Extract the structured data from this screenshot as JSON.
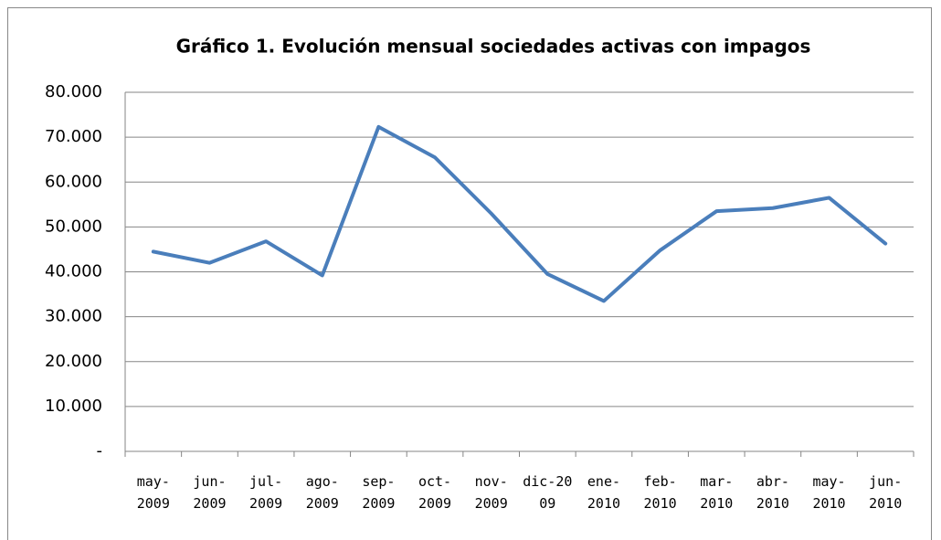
{
  "chart_data": {
    "type": "line",
    "title": "Gráfico 1. Evolución mensual sociedades activas con impagos",
    "categories": [
      "may-\n2009",
      "jun-\n2009",
      "jul-\n2009",
      "ago-\n2009",
      "sep-\n2009",
      "oct-\n2009",
      "nov-\n2009",
      "dic-20\n09",
      "ene-\n2010",
      "feb-\n2010",
      "mar-\n2010",
      "abr-\n2010",
      "may-\n2010",
      "jun-\n2010"
    ],
    "values": [
      44500,
      42000,
      46800,
      39200,
      72300,
      65500,
      53000,
      39500,
      33500,
      44800,
      53500,
      54200,
      56500,
      46300
    ],
    "color": "#4a7ebb",
    "ylim": [
      0,
      80000
    ],
    "yticks": [
      {
        "value": 0,
        "label": "-"
      },
      {
        "value": 10000,
        "label": "10.000"
      },
      {
        "value": 20000,
        "label": "20.000"
      },
      {
        "value": 30000,
        "label": "30.000"
      },
      {
        "value": 40000,
        "label": "40.000"
      },
      {
        "value": 50000,
        "label": "50.000"
      },
      {
        "value": 60000,
        "label": "60.000"
      },
      {
        "value": 70000,
        "label": "70.000"
      },
      {
        "value": 80000,
        "label": "80.000"
      }
    ],
    "grid": true
  }
}
